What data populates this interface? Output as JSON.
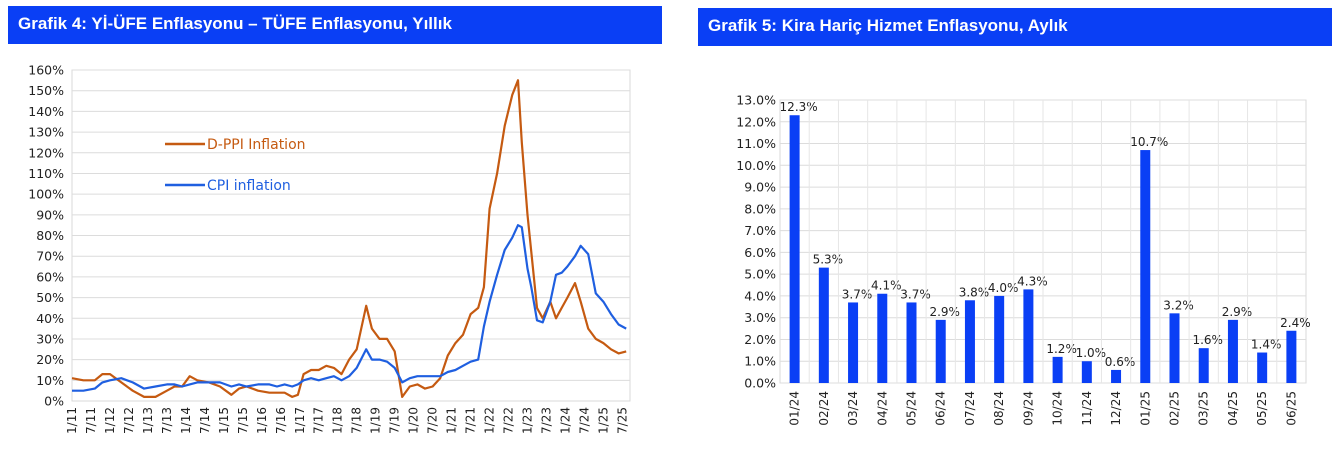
{
  "chart_data": [
    {
      "type": "line",
      "title": "Grafik 4: Yİ-ÜFE Enflasyonu – TÜFE Enflasyonu, Yıllık",
      "ylim": [
        0,
        160
      ],
      "y_ticks": [
        "0%",
        "10%",
        "20%",
        "30%",
        "40%",
        "50%",
        "60%",
        "70%",
        "80%",
        "90%",
        "100%",
        "110%",
        "120%",
        "130%",
        "140%",
        "150%",
        "160%"
      ],
      "x_ticks": [
        "1/11",
        "7/11",
        "1/12",
        "7/12",
        "1/13",
        "7/13",
        "1/14",
        "7/14",
        "1/15",
        "7/15",
        "1/16",
        "7/16",
        "1/17",
        "7/17",
        "1/18",
        "7/18",
        "1/19",
        "7/19",
        "1/20",
        "7/20",
        "1/21",
        "7/21",
        "1/22",
        "7/22",
        "1/23",
        "7/23",
        "1/24",
        "7/24",
        "1/25",
        "7/25"
      ],
      "x_range": [
        2011.0,
        2025.7
      ],
      "grid": true,
      "legend_position": "top-left",
      "series": [
        {
          "name": "D-PPI Inflation",
          "color": "#c55a11",
          "points": [
            [
              2011.0,
              11
            ],
            [
              2011.3,
              10
            ],
            [
              2011.6,
              10
            ],
            [
              2011.8,
              13
            ],
            [
              2012.0,
              13
            ],
            [
              2012.3,
              9
            ],
            [
              2012.6,
              5
            ],
            [
              2012.9,
              2
            ],
            [
              2013.2,
              2
            ],
            [
              2013.5,
              5
            ],
            [
              2013.7,
              7
            ],
            [
              2013.9,
              7
            ],
            [
              2014.1,
              12
            ],
            [
              2014.3,
              10
            ],
            [
              2014.6,
              9
            ],
            [
              2014.9,
              7
            ],
            [
              2015.2,
              3
            ],
            [
              2015.4,
              6
            ],
            [
              2015.6,
              7
            ],
            [
              2015.9,
              5
            ],
            [
              2016.2,
              4
            ],
            [
              2016.4,
              4
            ],
            [
              2016.6,
              4
            ],
            [
              2016.8,
              2
            ],
            [
              2016.95,
              3
            ],
            [
              2017.1,
              13
            ],
            [
              2017.3,
              15
            ],
            [
              2017.5,
              15
            ],
            [
              2017.7,
              17
            ],
            [
              2017.9,
              16
            ],
            [
              2018.1,
              13
            ],
            [
              2018.3,
              20
            ],
            [
              2018.5,
              25
            ],
            [
              2018.75,
              46
            ],
            [
              2018.9,
              35
            ],
            [
              2019.1,
              30
            ],
            [
              2019.3,
              30
            ],
            [
              2019.5,
              24
            ],
            [
              2019.7,
              2
            ],
            [
              2019.9,
              7
            ],
            [
              2020.1,
              8
            ],
            [
              2020.3,
              6
            ],
            [
              2020.5,
              7
            ],
            [
              2020.7,
              11
            ],
            [
              2020.9,
              22
            ],
            [
              2021.1,
              28
            ],
            [
              2021.3,
              32
            ],
            [
              2021.5,
              42
            ],
            [
              2021.7,
              45
            ],
            [
              2021.85,
              55
            ],
            [
              2022.0,
              93
            ],
            [
              2022.2,
              110
            ],
            [
              2022.4,
              133
            ],
            [
              2022.6,
              148
            ],
            [
              2022.75,
              155
            ],
            [
              2022.85,
              125
            ],
            [
              2023.0,
              90
            ],
            [
              2023.1,
              72
            ],
            [
              2023.25,
              45
            ],
            [
              2023.4,
              40
            ],
            [
              2023.6,
              48
            ],
            [
              2023.75,
              40
            ],
            [
              2023.9,
              45
            ],
            [
              2024.05,
              50
            ],
            [
              2024.25,
              57
            ],
            [
              2024.4,
              48
            ],
            [
              2024.6,
              35
            ],
            [
              2024.8,
              30
            ],
            [
              2025.0,
              28
            ],
            [
              2025.2,
              25
            ],
            [
              2025.4,
              23
            ],
            [
              2025.6,
              24
            ]
          ]
        },
        {
          "name": "CPI inflation",
          "color": "#1f5fe0",
          "points": [
            [
              2011.0,
              5
            ],
            [
              2011.3,
              5
            ],
            [
              2011.6,
              6
            ],
            [
              2011.8,
              9
            ],
            [
              2012.0,
              10
            ],
            [
              2012.3,
              11
            ],
            [
              2012.6,
              9
            ],
            [
              2012.9,
              6
            ],
            [
              2013.2,
              7
            ],
            [
              2013.5,
              8
            ],
            [
              2013.7,
              8
            ],
            [
              2013.9,
              7
            ],
            [
              2014.1,
              8
            ],
            [
              2014.3,
              9
            ],
            [
              2014.6,
              9
            ],
            [
              2014.9,
              9
            ],
            [
              2015.2,
              7
            ],
            [
              2015.4,
              8
            ],
            [
              2015.6,
              7
            ],
            [
              2015.9,
              8
            ],
            [
              2016.2,
              8
            ],
            [
              2016.4,
              7
            ],
            [
              2016.6,
              8
            ],
            [
              2016.8,
              7
            ],
            [
              2016.95,
              8
            ],
            [
              2017.1,
              10
            ],
            [
              2017.3,
              11
            ],
            [
              2017.5,
              10
            ],
            [
              2017.7,
              11
            ],
            [
              2017.9,
              12
            ],
            [
              2018.1,
              10
            ],
            [
              2018.3,
              12
            ],
            [
              2018.5,
              16
            ],
            [
              2018.75,
              25
            ],
            [
              2018.9,
              20
            ],
            [
              2019.1,
              20
            ],
            [
              2019.3,
              19
            ],
            [
              2019.5,
              16
            ],
            [
              2019.7,
              9
            ],
            [
              2019.9,
              11
            ],
            [
              2020.1,
              12
            ],
            [
              2020.3,
              12
            ],
            [
              2020.5,
              12
            ],
            [
              2020.7,
              12
            ],
            [
              2020.9,
              14
            ],
            [
              2021.1,
              15
            ],
            [
              2021.3,
              17
            ],
            [
              2021.5,
              19
            ],
            [
              2021.7,
              20
            ],
            [
              2021.85,
              36
            ],
            [
              2022.0,
              48
            ],
            [
              2022.2,
              61
            ],
            [
              2022.4,
              73
            ],
            [
              2022.6,
              79
            ],
            [
              2022.75,
              85
            ],
            [
              2022.85,
              84
            ],
            [
              2023.0,
              64
            ],
            [
              2023.1,
              55
            ],
            [
              2023.25,
              39
            ],
            [
              2023.4,
              38
            ],
            [
              2023.6,
              48
            ],
            [
              2023.75,
              61
            ],
            [
              2023.9,
              62
            ],
            [
              2024.05,
              65
            ],
            [
              2024.25,
              70
            ],
            [
              2024.4,
              75
            ],
            [
              2024.6,
              71
            ],
            [
              2024.8,
              52
            ],
            [
              2025.0,
              48
            ],
            [
              2025.2,
              42
            ],
            [
              2025.4,
              37
            ],
            [
              2025.6,
              35
            ]
          ]
        }
      ]
    },
    {
      "type": "bar",
      "title": "Grafik 5: Kira Hariç Hizmet Enflasyonu, Aylık",
      "ylim": [
        0,
        13
      ],
      "y_ticks": [
        "0.0%",
        "1.0%",
        "2.0%",
        "3.0%",
        "4.0%",
        "5.0%",
        "6.0%",
        "7.0%",
        "8.0%",
        "9.0%",
        "10.0%",
        "11.0%",
        "12.0%",
        "13.0%"
      ],
      "categories": [
        "01/24",
        "02/24",
        "03/24",
        "04/24",
        "05/24",
        "06/24",
        "07/24",
        "08/24",
        "09/24",
        "10/24",
        "11/24",
        "12/24",
        "01/25",
        "02/25",
        "03/25",
        "04/25",
        "05/25",
        "06/25"
      ],
      "values": [
        12.3,
        5.3,
        3.7,
        4.1,
        3.7,
        2.9,
        3.8,
        4.0,
        4.3,
        1.2,
        1.0,
        0.6,
        10.7,
        3.2,
        1.6,
        2.9,
        1.4,
        2.4
      ],
      "labels": [
        "12.3%",
        "5.3%",
        "3.7%",
        "4.1%",
        "3.7%",
        "2.9%",
        "3.8%",
        "4.0%",
        "4.3%",
        "1.2%",
        "1.0%",
        "0.6%",
        "10.7%",
        "3.2%",
        "1.6%",
        "2.9%",
        "1.4%",
        "2.4%"
      ],
      "color": "#0a3ff5",
      "grid": true
    }
  ]
}
